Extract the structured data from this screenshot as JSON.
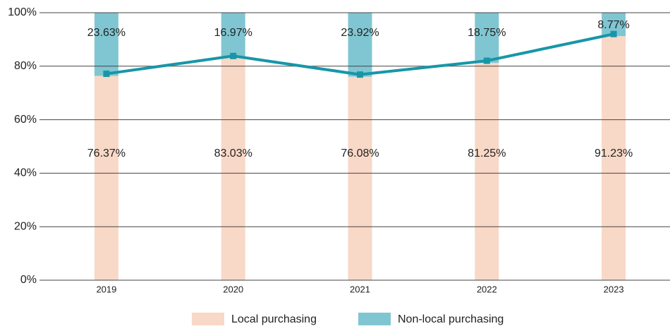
{
  "chart_data": {
    "type": "stacked_bar",
    "categories": [
      "2019",
      "2020",
      "2021",
      "2022",
      "2023"
    ],
    "series": [
      {
        "name": "Local purchasing",
        "color": "#f8d8c6",
        "values": [
          76.37,
          83.03,
          76.08,
          81.25,
          91.23
        ],
        "value_labels": [
          "76.37%",
          "83.03%",
          "76.08%",
          "81.25%",
          "91.23%"
        ]
      },
      {
        "name": "Non-local purchasing",
        "color": "#80c6d2",
        "values": [
          23.63,
          16.97,
          23.92,
          18.75,
          8.77
        ],
        "value_labels": [
          "23.63%",
          "16.97%",
          "23.92%",
          "18.75%",
          "8.77%"
        ]
      }
    ],
    "line_color": "#1796a8",
    "ylim": [
      0,
      100
    ],
    "yticks": [
      {
        "value": 0,
        "label": "0%"
      },
      {
        "value": 20,
        "label": "20%"
      },
      {
        "value": 40,
        "label": "40%"
      },
      {
        "value": 60,
        "label": "60%"
      },
      {
        "value": 80,
        "label": "80%"
      },
      {
        "value": 100,
        "label": "100%"
      }
    ],
    "grid": true,
    "legend": "bottom"
  }
}
